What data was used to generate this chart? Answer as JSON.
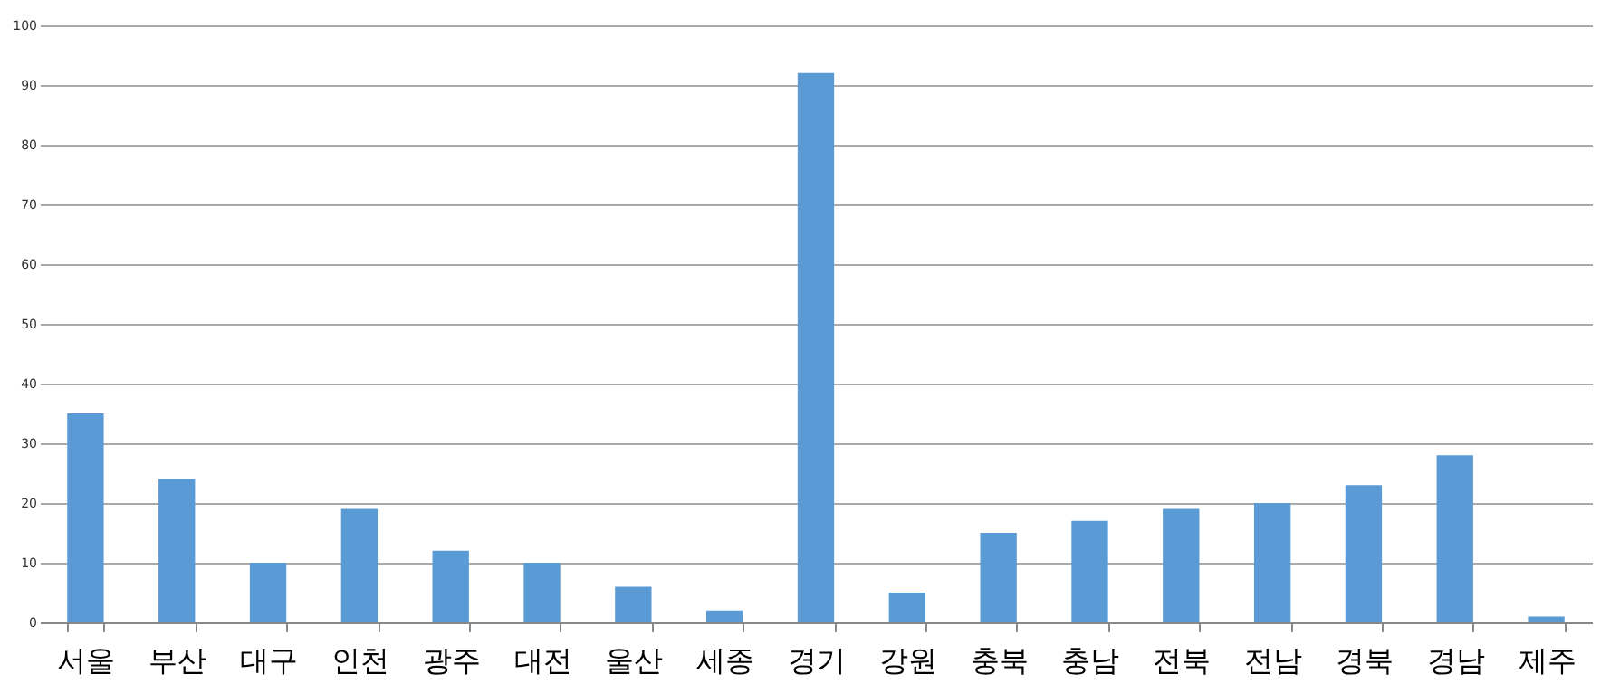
{
  "chart_data": {
    "type": "bar",
    "categories": [
      "서울",
      "부산",
      "대구",
      "인천",
      "광주",
      "대전",
      "울산",
      "세종",
      "경기",
      "강원",
      "충북",
      "충남",
      "전북",
      "전남",
      "경북",
      "경남",
      "제주"
    ],
    "values": [
      35,
      24,
      10,
      19,
      12,
      10,
      6,
      2,
      92,
      5,
      15,
      17,
      19,
      20,
      23,
      28,
      1
    ],
    "color": "#5b9bd5",
    "ylim": [
      0,
      100
    ],
    "yticks": [
      0,
      10,
      20,
      30,
      40,
      50,
      60,
      70,
      80,
      90,
      100
    ],
    "grid": "y"
  }
}
